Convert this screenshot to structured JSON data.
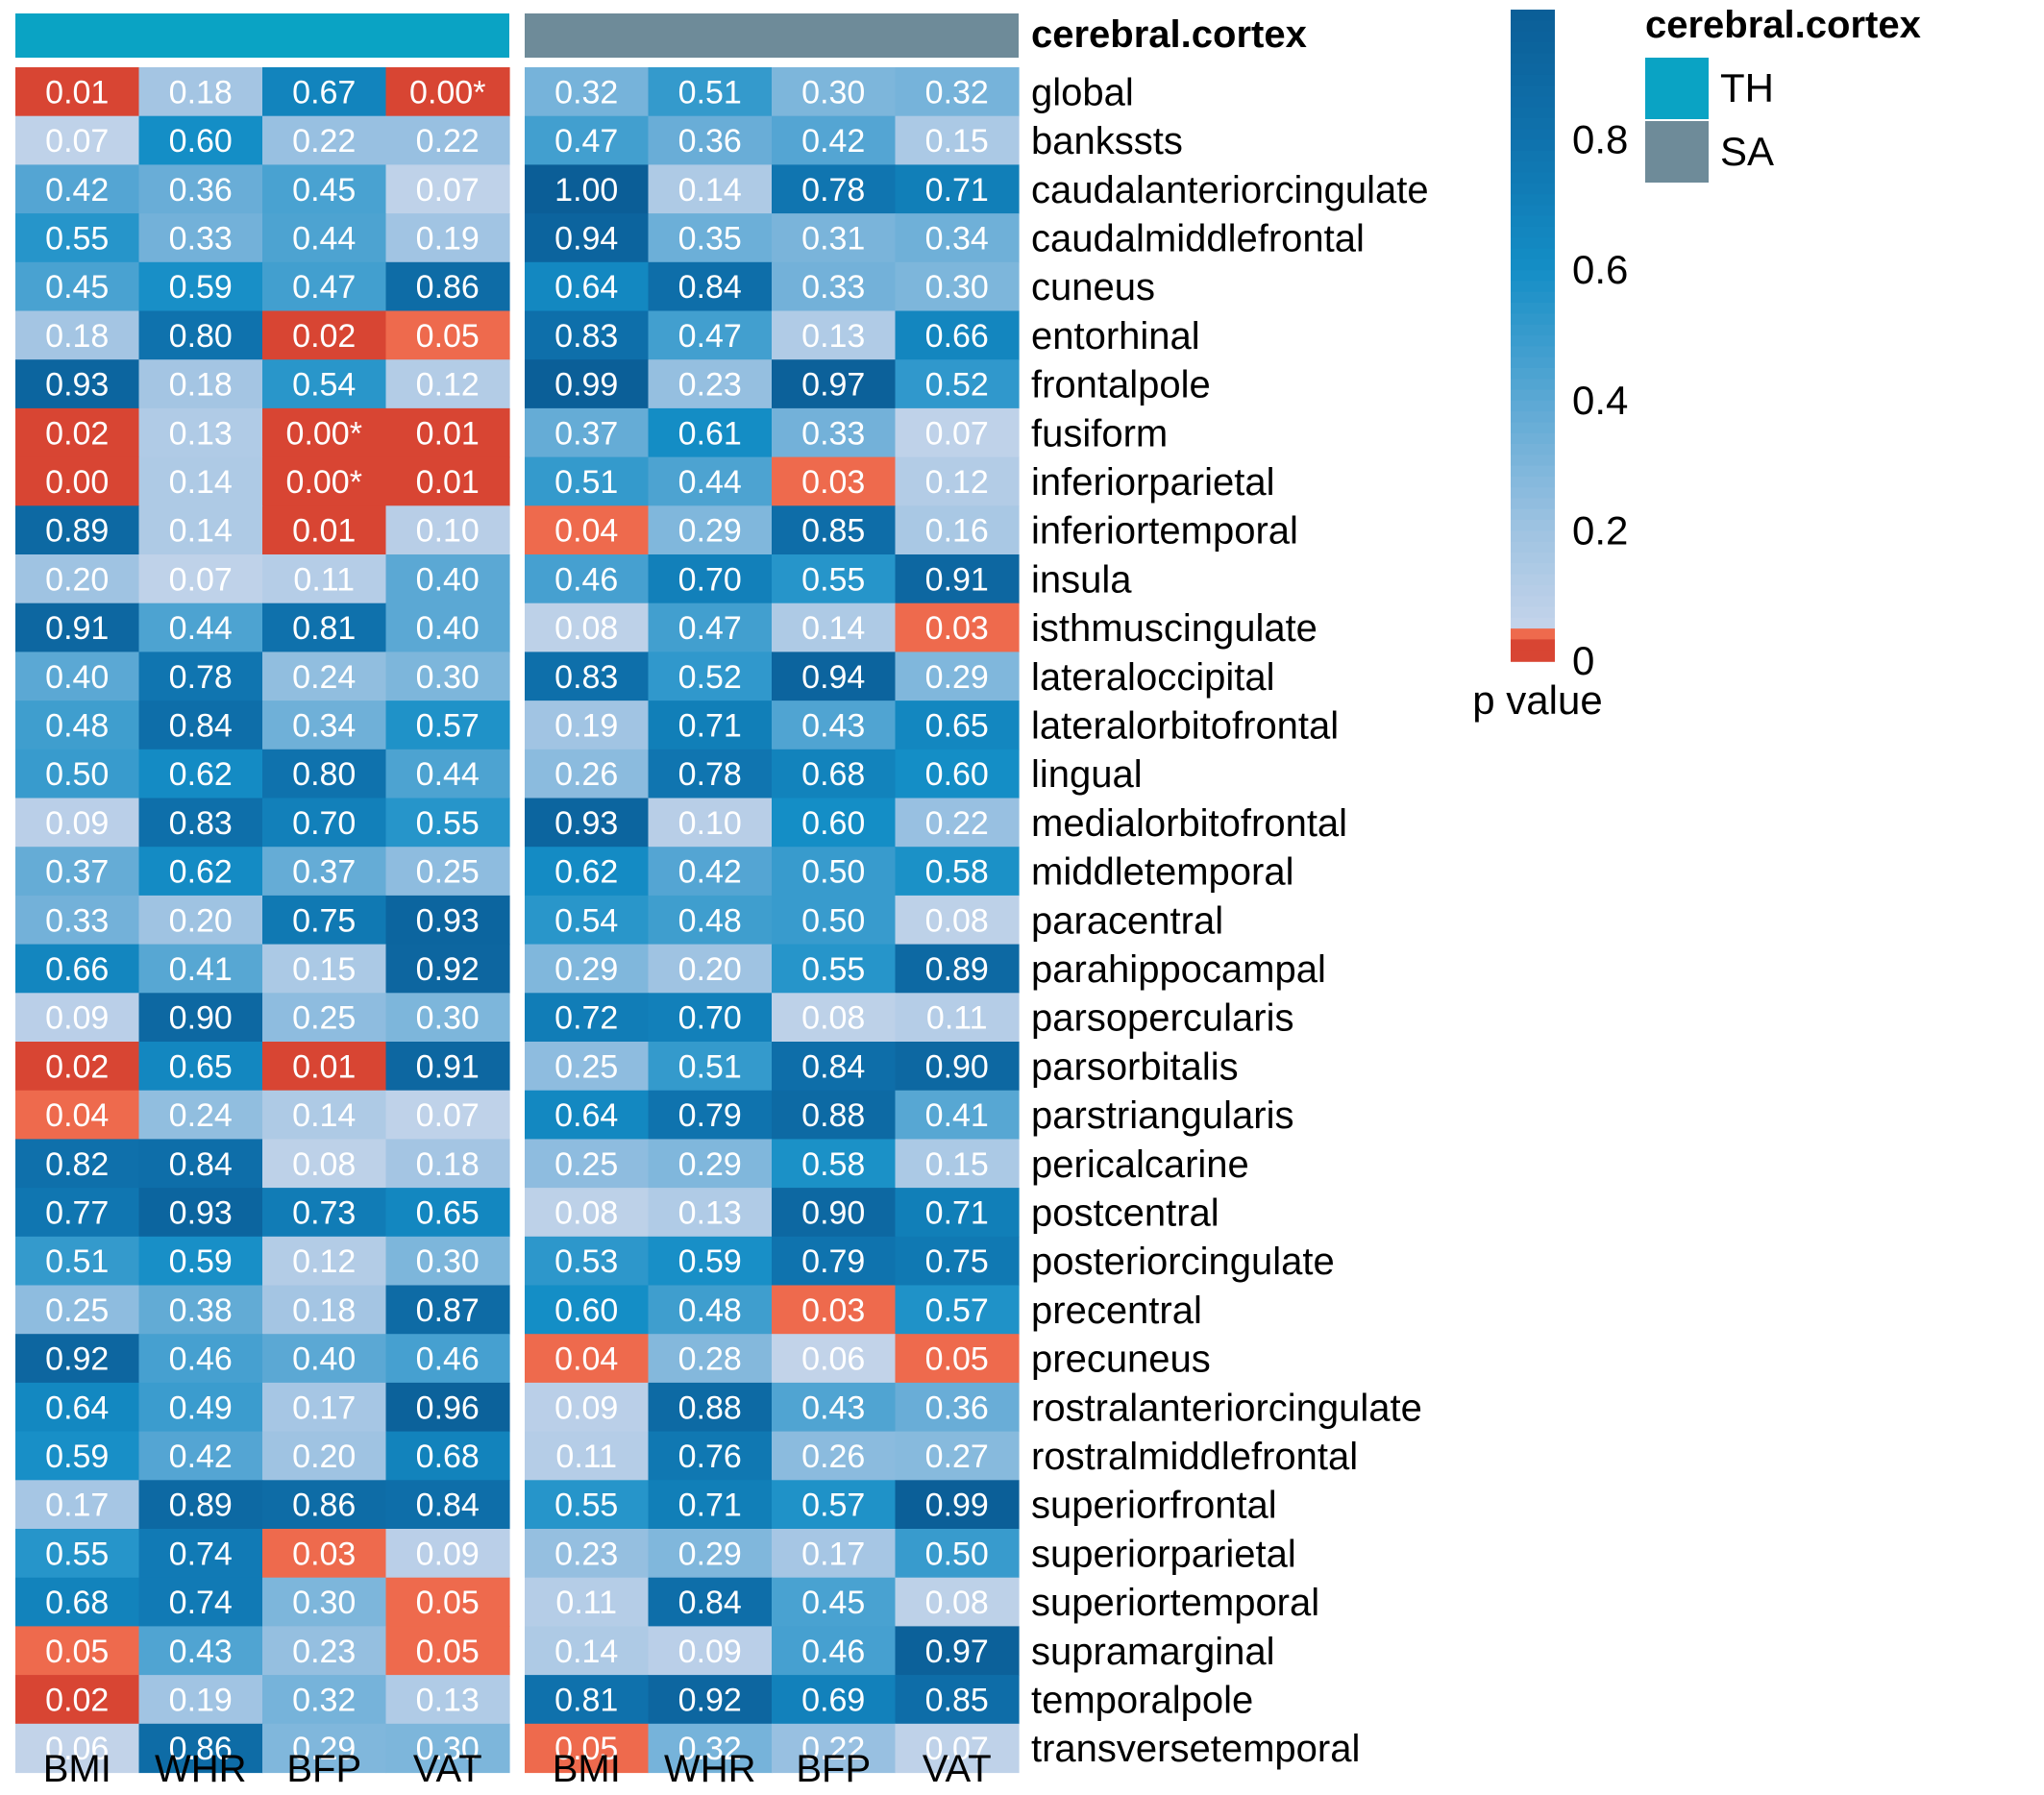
{
  "chart_data": {
    "type": "heatmap",
    "title": "cerebral.cortex",
    "legend_title": "p value",
    "annotation_legend": {
      "title": "cerebral.cortex",
      "items": [
        {
          "label": "TH",
          "color": "#0AA3C4"
        },
        {
          "label": "SA",
          "color": "#6E8B99"
        }
      ]
    },
    "colorbar": {
      "ticks": [
        "0.8",
        "0.6",
        "0.4",
        "0.2",
        "0"
      ],
      "tick_values": [
        0.8,
        0.6,
        0.4,
        0.2,
        0
      ],
      "range": [
        0,
        1
      ]
    },
    "columns": [
      "BMI",
      "WHR",
      "BFP",
      "VAT"
    ],
    "rows": [
      "global",
      "bankssts",
      "caudalanteriorcingulate",
      "caudalmiddlefrontal",
      "cuneus",
      "entorhinal",
      "frontalpole",
      "fusiform",
      "inferiorparietal",
      "inferiortemporal",
      "insula",
      "isthmuscingulate",
      "lateraloccipital",
      "lateralorbitofrontal",
      "lingual",
      "medialorbitofrontal",
      "middletemporal",
      "paracentral",
      "parahippocampal",
      "parsopercularis",
      "parsorbitalis",
      "parstriangularis",
      "pericalcarine",
      "postcentral",
      "posteriorcingulate",
      "precentral",
      "precuneus",
      "rostralanteriorcingulate",
      "rostralmiddlefrontal",
      "superiorfrontal",
      "superiorparietal",
      "superiortemporal",
      "supramarginal",
      "temporalpole",
      "transversetemporal"
    ],
    "panels": [
      {
        "name": "TH",
        "values": [
          [
            0.01,
            0.18,
            0.67,
            0.0
          ],
          [
            0.07,
            0.6,
            0.22,
            0.22
          ],
          [
            0.42,
            0.36,
            0.45,
            0.07
          ],
          [
            0.55,
            0.33,
            0.44,
            0.19
          ],
          [
            0.45,
            0.59,
            0.47,
            0.86
          ],
          [
            0.18,
            0.8,
            0.02,
            0.05
          ],
          [
            0.93,
            0.18,
            0.54,
            0.12
          ],
          [
            0.02,
            0.13,
            0.0,
            0.01
          ],
          [
            0.0,
            0.14,
            0.0,
            0.01
          ],
          [
            0.89,
            0.14,
            0.01,
            0.1
          ],
          [
            0.2,
            0.07,
            0.11,
            0.4
          ],
          [
            0.91,
            0.44,
            0.81,
            0.4
          ],
          [
            0.4,
            0.78,
            0.24,
            0.3
          ],
          [
            0.48,
            0.84,
            0.34,
            0.57
          ],
          [
            0.5,
            0.62,
            0.8,
            0.44
          ],
          [
            0.09,
            0.83,
            0.7,
            0.55
          ],
          [
            0.37,
            0.62,
            0.37,
            0.25
          ],
          [
            0.33,
            0.2,
            0.75,
            0.93
          ],
          [
            0.66,
            0.41,
            0.15,
            0.92
          ],
          [
            0.09,
            0.9,
            0.25,
            0.3
          ],
          [
            0.02,
            0.65,
            0.01,
            0.91
          ],
          [
            0.04,
            0.24,
            0.14,
            0.07
          ],
          [
            0.82,
            0.84,
            0.08,
            0.18
          ],
          [
            0.77,
            0.93,
            0.73,
            0.65
          ],
          [
            0.51,
            0.59,
            0.12,
            0.3
          ],
          [
            0.25,
            0.38,
            0.18,
            0.87
          ],
          [
            0.92,
            0.46,
            0.4,
            0.46
          ],
          [
            0.64,
            0.49,
            0.17,
            0.96
          ],
          [
            0.59,
            0.42,
            0.2,
            0.68
          ],
          [
            0.17,
            0.89,
            0.86,
            0.84
          ],
          [
            0.55,
            0.74,
            0.03,
            0.09
          ],
          [
            0.68,
            0.74,
            0.3,
            0.05
          ],
          [
            0.05,
            0.43,
            0.23,
            0.05
          ],
          [
            0.02,
            0.19,
            0.32,
            0.13
          ],
          [
            0.06,
            0.86,
            0.29,
            0.3
          ]
        ],
        "labels": [
          [
            "0.01",
            "0.18",
            "0.67",
            "0.00*"
          ],
          [
            "0.07",
            "0.60",
            "0.22",
            "0.22"
          ],
          [
            "0.42",
            "0.36",
            "0.45",
            "0.07"
          ],
          [
            "0.55",
            "0.33",
            "0.44",
            "0.19"
          ],
          [
            "0.45",
            "0.59",
            "0.47",
            "0.86"
          ],
          [
            "0.18",
            "0.80",
            "0.02",
            "0.05"
          ],
          [
            "0.93",
            "0.18",
            "0.54",
            "0.12"
          ],
          [
            "0.02",
            "0.13",
            "0.00*",
            "0.01"
          ],
          [
            "0.00",
            "0.14",
            "0.00*",
            "0.01"
          ],
          [
            "0.89",
            "0.14",
            "0.01",
            "0.10"
          ],
          [
            "0.20",
            "0.07",
            "0.11",
            "0.40"
          ],
          [
            "0.91",
            "0.44",
            "0.81",
            "0.40"
          ],
          [
            "0.40",
            "0.78",
            "0.24",
            "0.30"
          ],
          [
            "0.48",
            "0.84",
            "0.34",
            "0.57"
          ],
          [
            "0.50",
            "0.62",
            "0.80",
            "0.44"
          ],
          [
            "0.09",
            "0.83",
            "0.70",
            "0.55"
          ],
          [
            "0.37",
            "0.62",
            "0.37",
            "0.25"
          ],
          [
            "0.33",
            "0.20",
            "0.75",
            "0.93"
          ],
          [
            "0.66",
            "0.41",
            "0.15",
            "0.92"
          ],
          [
            "0.09",
            "0.90",
            "0.25",
            "0.30"
          ],
          [
            "0.02",
            "0.65",
            "0.01",
            "0.91"
          ],
          [
            "0.04",
            "0.24",
            "0.14",
            "0.07"
          ],
          [
            "0.82",
            "0.84",
            "0.08",
            "0.18"
          ],
          [
            "0.77",
            "0.93",
            "0.73",
            "0.65"
          ],
          [
            "0.51",
            "0.59",
            "0.12",
            "0.30"
          ],
          [
            "0.25",
            "0.38",
            "0.18",
            "0.87"
          ],
          [
            "0.92",
            "0.46",
            "0.40",
            "0.46"
          ],
          [
            "0.64",
            "0.49",
            "0.17",
            "0.96"
          ],
          [
            "0.59",
            "0.42",
            "0.20",
            "0.68"
          ],
          [
            "0.17",
            "0.89",
            "0.86",
            "0.84"
          ],
          [
            "0.55",
            "0.74",
            "0.03",
            "0.09"
          ],
          [
            "0.68",
            "0.74",
            "0.30",
            "0.05"
          ],
          [
            "0.05",
            "0.43",
            "0.23",
            "0.05"
          ],
          [
            "0.02",
            "0.19",
            "0.32",
            "0.13"
          ],
          [
            "0.06",
            "0.86",
            "0.29",
            "0.30"
          ]
        ]
      },
      {
        "name": "SA",
        "values": [
          [
            0.32,
            0.51,
            0.3,
            0.32
          ],
          [
            0.47,
            0.36,
            0.42,
            0.15
          ],
          [
            1.0,
            0.14,
            0.78,
            0.71
          ],
          [
            0.94,
            0.35,
            0.31,
            0.34
          ],
          [
            0.64,
            0.84,
            0.33,
            0.3
          ],
          [
            0.83,
            0.47,
            0.13,
            0.66
          ],
          [
            0.99,
            0.23,
            0.97,
            0.52
          ],
          [
            0.37,
            0.61,
            0.33,
            0.07
          ],
          [
            0.51,
            0.44,
            0.03,
            0.12
          ],
          [
            0.04,
            0.29,
            0.85,
            0.16
          ],
          [
            0.46,
            0.7,
            0.55,
            0.91
          ],
          [
            0.08,
            0.47,
            0.14,
            0.03
          ],
          [
            0.83,
            0.52,
            0.94,
            0.29
          ],
          [
            0.19,
            0.71,
            0.43,
            0.65
          ],
          [
            0.26,
            0.78,
            0.68,
            0.6
          ],
          [
            0.93,
            0.1,
            0.6,
            0.22
          ],
          [
            0.62,
            0.42,
            0.5,
            0.58
          ],
          [
            0.54,
            0.48,
            0.5,
            0.08
          ],
          [
            0.29,
            0.2,
            0.55,
            0.89
          ],
          [
            0.72,
            0.7,
            0.08,
            0.11
          ],
          [
            0.25,
            0.51,
            0.84,
            0.9
          ],
          [
            0.64,
            0.79,
            0.88,
            0.41
          ],
          [
            0.25,
            0.29,
            0.58,
            0.15
          ],
          [
            0.08,
            0.13,
            0.9,
            0.71
          ],
          [
            0.53,
            0.59,
            0.79,
            0.75
          ],
          [
            0.6,
            0.48,
            0.03,
            0.57
          ],
          [
            0.04,
            0.28,
            0.06,
            0.05
          ],
          [
            0.09,
            0.88,
            0.43,
            0.36
          ],
          [
            0.11,
            0.76,
            0.26,
            0.27
          ],
          [
            0.55,
            0.71,
            0.57,
            0.99
          ],
          [
            0.23,
            0.29,
            0.17,
            0.5
          ],
          [
            0.11,
            0.84,
            0.45,
            0.08
          ],
          [
            0.14,
            0.09,
            0.46,
            0.97
          ],
          [
            0.81,
            0.92,
            0.69,
            0.85
          ],
          [
            0.05,
            0.32,
            0.22,
            0.07
          ]
        ],
        "labels": [
          [
            "0.32",
            "0.51",
            "0.30",
            "0.32"
          ],
          [
            "0.47",
            "0.36",
            "0.42",
            "0.15"
          ],
          [
            "1.00",
            "0.14",
            "0.78",
            "0.71"
          ],
          [
            "0.94",
            "0.35",
            "0.31",
            "0.34"
          ],
          [
            "0.64",
            "0.84",
            "0.33",
            "0.30"
          ],
          [
            "0.83",
            "0.47",
            "0.13",
            "0.66"
          ],
          [
            "0.99",
            "0.23",
            "0.97",
            "0.52"
          ],
          [
            "0.37",
            "0.61",
            "0.33",
            "0.07"
          ],
          [
            "0.51",
            "0.44",
            "0.03",
            "0.12"
          ],
          [
            "0.04",
            "0.29",
            "0.85",
            "0.16"
          ],
          [
            "0.46",
            "0.70",
            "0.55",
            "0.91"
          ],
          [
            "0.08",
            "0.47",
            "0.14",
            "0.03"
          ],
          [
            "0.83",
            "0.52",
            "0.94",
            "0.29"
          ],
          [
            "0.19",
            "0.71",
            "0.43",
            "0.65"
          ],
          [
            "0.26",
            "0.78",
            "0.68",
            "0.60"
          ],
          [
            "0.93",
            "0.10",
            "0.60",
            "0.22"
          ],
          [
            "0.62",
            "0.42",
            "0.50",
            "0.58"
          ],
          [
            "0.54",
            "0.48",
            "0.50",
            "0.08"
          ],
          [
            "0.29",
            "0.20",
            "0.55",
            "0.89"
          ],
          [
            "0.72",
            "0.70",
            "0.08",
            "0.11"
          ],
          [
            "0.25",
            "0.51",
            "0.84",
            "0.90"
          ],
          [
            "0.64",
            "0.79",
            "0.88",
            "0.41"
          ],
          [
            "0.25",
            "0.29",
            "0.58",
            "0.15"
          ],
          [
            "0.08",
            "0.13",
            "0.90",
            "0.71"
          ],
          [
            "0.53",
            "0.59",
            "0.79",
            "0.75"
          ],
          [
            "0.60",
            "0.48",
            "0.03",
            "0.57"
          ],
          [
            "0.04",
            "0.28",
            "0.06",
            "0.05"
          ],
          [
            "0.09",
            "0.88",
            "0.43",
            "0.36"
          ],
          [
            "0.11",
            "0.76",
            "0.26",
            "0.27"
          ],
          [
            "0.55",
            "0.71",
            "0.57",
            "0.99"
          ],
          [
            "0.23",
            "0.29",
            "0.17",
            "0.50"
          ],
          [
            "0.11",
            "0.84",
            "0.45",
            "0.08"
          ],
          [
            "0.14",
            "0.09",
            "0.46",
            "0.97"
          ],
          [
            "0.81",
            "0.92",
            "0.69",
            "0.85"
          ],
          [
            "0.05",
            "0.32",
            "0.22",
            "0.07"
          ]
        ]
      }
    ]
  }
}
